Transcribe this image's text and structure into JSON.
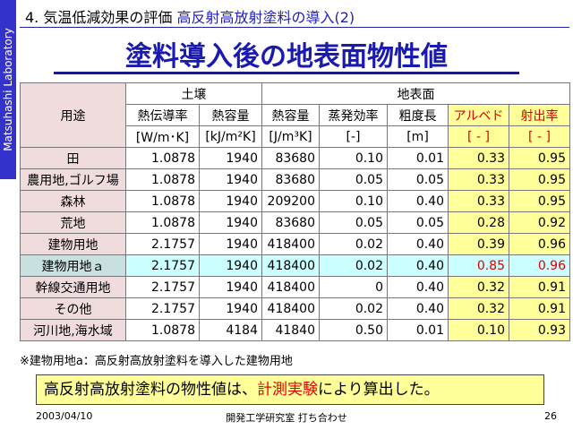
{
  "side_label": "Matsuhashi Laboratory",
  "header": {
    "section": "4. 気温低減効果の評価",
    "topic": "高反射高放射塗料の導入(2)"
  },
  "title": "塗料導入後の地表面物性値",
  "table": {
    "use_header": "用途",
    "groups": [
      "土壌",
      "地表面"
    ],
    "columns": [
      "熱伝導率",
      "熱容量",
      "熱容量",
      "蒸発効率",
      "粗度長",
      "アルベド",
      "射出率"
    ],
    "units": [
      "[W/m･K]",
      "[kJ/m²K]",
      "[J/m³K]",
      "[-]",
      "[m]",
      "[ - ]",
      "[ - ]"
    ],
    "rows": [
      {
        "label": "田",
        "values": [
          "1.0878",
          "1940",
          "83680",
          "0.10",
          "0.01",
          "0.33",
          "0.95"
        ]
      },
      {
        "label": "農用地,ゴルフ場",
        "values": [
          "1.0878",
          "1940",
          "83680",
          "0.05",
          "0.05",
          "0.33",
          "0.95"
        ]
      },
      {
        "label": "森林",
        "values": [
          "1.0878",
          "1940",
          "209200",
          "0.10",
          "0.40",
          "0.33",
          "0.95"
        ]
      },
      {
        "label": "荒地",
        "values": [
          "1.0878",
          "1940",
          "83680",
          "0.05",
          "0.05",
          "0.28",
          "0.92"
        ]
      },
      {
        "label": "建物用地",
        "values": [
          "2.1757",
          "1940",
          "418400",
          "0.02",
          "0.40",
          "0.39",
          "0.96"
        ]
      },
      {
        "label": "建物用地ａ",
        "values": [
          "2.1757",
          "1940",
          "418400",
          "0.02",
          "0.40",
          "0.85",
          "0.96"
        ]
      },
      {
        "label": "幹線交通用地",
        "values": [
          "2.1757",
          "1940",
          "418400",
          "0",
          "0.40",
          "0.32",
          "0.91"
        ]
      },
      {
        "label": "その他",
        "values": [
          "2.1757",
          "1940",
          "418400",
          "0.02",
          "0.40",
          "0.32",
          "0.91"
        ]
      },
      {
        "label": "河川地,海水域",
        "values": [
          "1.0878",
          "4184",
          "41840",
          "0.50",
          "0.01",
          "0.10",
          "0.93"
        ]
      }
    ]
  },
  "note": "※建物用地a：高反射高放射塗料を導入した建物用地",
  "conclusion": {
    "before": "高反射高放射塗料の物性値は、",
    "highlight": "計測実験",
    "after": "により算出した。"
  },
  "footer": {
    "date": "2003/04/10",
    "center": "開発工学研究室 打ち合わせ",
    "page": "26"
  }
}
